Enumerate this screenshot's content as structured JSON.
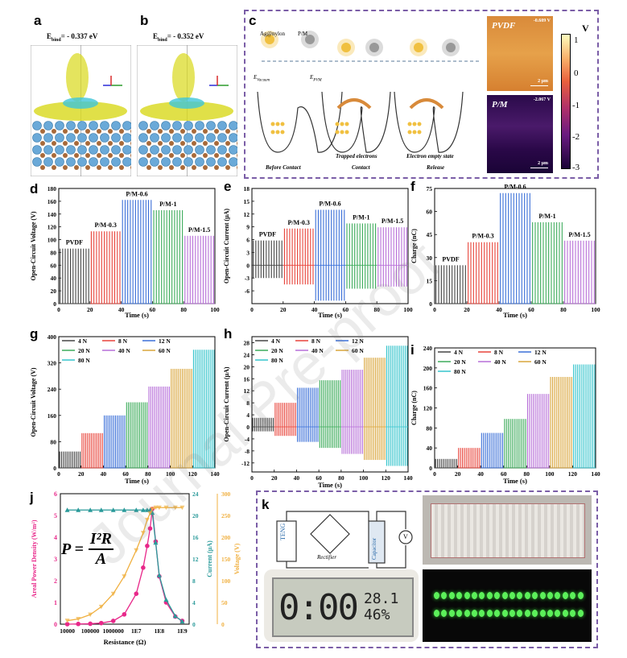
{
  "panels": {
    "a": {
      "label": "a",
      "ebind": "E",
      "ebind_sub": "bind",
      "ebind_value": "= - 0.337 eV"
    },
    "b": {
      "label": "b",
      "ebind": "E",
      "ebind_sub": "bind",
      "ebind_value": "= - 0.352 eV"
    },
    "c": {
      "label": "c",
      "materials": [
        "Ag@nylon",
        "P/M"
      ],
      "energy_labels": [
        "E",
        "E"
      ],
      "energy_subs": [
        "Vacuum",
        "PVM"
      ],
      "bottom_labels": [
        "Before Contact",
        "Contact",
        "Release"
      ],
      "legend": [
        "Trapped electrons",
        "Electron empty state"
      ],
      "afm": [
        {
          "name": "PVDF",
          "potential": "-0.609 V",
          "scale": "2 μm"
        },
        {
          "name": "P/M",
          "potential": "-2.067 V",
          "scale": "2 μm"
        }
      ],
      "colorbar_unit": "V",
      "colorbar_ticks": [
        "1",
        "0",
        "-1",
        "-2",
        "-3"
      ]
    },
    "d": {
      "label": "d"
    },
    "e": {
      "label": "e"
    },
    "f": {
      "label": "f"
    },
    "g": {
      "label": "g"
    },
    "h": {
      "label": "h"
    },
    "i": {
      "label": "i"
    },
    "j": {
      "label": "j",
      "formula_lhs": "P =",
      "formula_num": "I²R",
      "formula_den": "A"
    },
    "k": {
      "label": "k",
      "circuit": [
        "TENG",
        "Rectifier",
        "Capacitor",
        "V"
      ],
      "clock": {
        "time": "0:00",
        "temp": "28.1",
        "humidity": "46%"
      }
    }
  },
  "watermark": "Journal Pre-proof",
  "chart_data": [
    {
      "id": "d",
      "type": "bar",
      "ylabel": "Open-Circuit Voltage (V)",
      "xlabel": "Time (s)",
      "xlim": [
        0,
        100
      ],
      "ylim": [
        0,
        180
      ],
      "xticks": [
        0,
        20,
        40,
        60,
        80,
        100
      ],
      "yticks": [
        0,
        20,
        40,
        60,
        80,
        100,
        120,
        140,
        160,
        180
      ],
      "series": [
        {
          "name": "PVDF",
          "x_range": [
            0,
            20
          ],
          "peak": 86,
          "trough": 0,
          "color": "#444444"
        },
        {
          "name": "P/M-0.3",
          "x_range": [
            20,
            40
          ],
          "peak": 113,
          "trough": 0,
          "color": "#e8433a"
        },
        {
          "name": "P/M-0.6",
          "x_range": [
            40,
            60
          ],
          "peak": 162,
          "trough": 0,
          "color": "#3a6fd8"
        },
        {
          "name": "P/M-1",
          "x_range": [
            60,
            80
          ],
          "peak": 146,
          "trough": 0,
          "color": "#3cab5a"
        },
        {
          "name": "P/M-1.5",
          "x_range": [
            80,
            100
          ],
          "peak": 106,
          "trough": 0,
          "color": "#b76fd8"
        }
      ]
    },
    {
      "id": "e",
      "type": "bar",
      "ylabel": "Open-Circuit Current (μA)",
      "xlabel": "Time (s)",
      "xlim": [
        0,
        100
      ],
      "ylim": [
        -9,
        18
      ],
      "xticks": [
        0,
        20,
        40,
        60,
        80,
        100
      ],
      "yticks": [
        -6,
        -3,
        0,
        3,
        6,
        9,
        12,
        15,
        18
      ],
      "series": [
        {
          "name": "PVDF",
          "x_range": [
            0,
            20
          ],
          "peak": 5.8,
          "trough": -3,
          "color": "#444444"
        },
        {
          "name": "P/M-0.3",
          "x_range": [
            20,
            40
          ],
          "peak": 8.6,
          "trough": -4.5,
          "color": "#e8433a"
        },
        {
          "name": "P/M-0.6",
          "x_range": [
            40,
            60
          ],
          "peak": 13,
          "trough": -8.3,
          "color": "#3a6fd8"
        },
        {
          "name": "P/M-1",
          "x_range": [
            60,
            80
          ],
          "peak": 9.8,
          "trough": -5.5,
          "color": "#3cab5a"
        },
        {
          "name": "P/M-1.5",
          "x_range": [
            80,
            100
          ],
          "peak": 8.9,
          "trough": -5,
          "color": "#b76fd8"
        }
      ]
    },
    {
      "id": "f",
      "type": "bar",
      "ylabel": "Charge (nC)",
      "xlabel": "Time (s)",
      "xlim": [
        0,
        100
      ],
      "ylim": [
        0,
        75
      ],
      "xticks": [
        0,
        20,
        40,
        60,
        80,
        100
      ],
      "yticks": [
        0,
        15,
        30,
        45,
        60,
        75
      ],
      "series": [
        {
          "name": "PVDF",
          "x_range": [
            0,
            20
          ],
          "peak": 25,
          "trough": 0,
          "color": "#444444"
        },
        {
          "name": "P/M-0.3",
          "x_range": [
            20,
            40
          ],
          "peak": 40,
          "trough": 0,
          "color": "#e8433a"
        },
        {
          "name": "P/M-0.6",
          "x_range": [
            40,
            60
          ],
          "peak": 72,
          "trough": 0,
          "color": "#3a6fd8"
        },
        {
          "name": "P/M-1",
          "x_range": [
            60,
            80
          ],
          "peak": 53,
          "trough": 0,
          "color": "#3cab5a"
        },
        {
          "name": "P/M-1.5",
          "x_range": [
            80,
            100
          ],
          "peak": 41,
          "trough": 0,
          "color": "#b76fd8"
        }
      ]
    },
    {
      "id": "g",
      "type": "bar",
      "ylabel": "Open-Circuit Voltage (V)",
      "xlabel": "Time (s)",
      "xlim": [
        0,
        140
      ],
      "ylim": [
        0,
        400
      ],
      "xticks": [
        0,
        20,
        40,
        60,
        80,
        100,
        120,
        140
      ],
      "yticks": [
        0,
        80,
        160,
        240,
        320,
        400
      ],
      "series": [
        {
          "name": "4 N",
          "x_range": [
            0,
            20
          ],
          "peak": 50,
          "trough": 0,
          "color": "#444444"
        },
        {
          "name": "8 N",
          "x_range": [
            20,
            40
          ],
          "peak": 106,
          "trough": 0,
          "color": "#e8433a"
        },
        {
          "name": "12 N",
          "x_range": [
            40,
            60
          ],
          "peak": 160,
          "trough": 0,
          "color": "#3a6fd8"
        },
        {
          "name": "20 N",
          "x_range": [
            60,
            80
          ],
          "peak": 200,
          "trough": 0,
          "color": "#3cab5a"
        },
        {
          "name": "40 N",
          "x_range": [
            80,
            100
          ],
          "peak": 248,
          "trough": 0,
          "color": "#b76fd8"
        },
        {
          "name": "60 N",
          "x_range": [
            100,
            120
          ],
          "peak": 302,
          "trough": 0,
          "color": "#d9a53a"
        },
        {
          "name": "80 N",
          "x_range": [
            120,
            140
          ],
          "peak": 360,
          "trough": 0,
          "color": "#35c4cc"
        }
      ]
    },
    {
      "id": "h",
      "type": "bar",
      "ylabel": "Open-Circuit Current (μA)",
      "xlabel": "Time (s)",
      "xlim": [
        0,
        140
      ],
      "ylim": [
        -15,
        30
      ],
      "xticks": [
        0,
        20,
        40,
        60,
        80,
        100,
        120,
        140
      ],
      "yticks": [
        -12,
        -8,
        -4,
        0,
        4,
        8,
        12,
        16,
        20,
        24,
        28
      ],
      "series": [
        {
          "name": "4 N",
          "x_range": [
            0,
            20
          ],
          "peak": 3,
          "trough": -1.5,
          "color": "#444444"
        },
        {
          "name": "8 N",
          "x_range": [
            20,
            40
          ],
          "peak": 8,
          "trough": -3,
          "color": "#e8433a"
        },
        {
          "name": "12 N",
          "x_range": [
            40,
            60
          ],
          "peak": 13,
          "trough": -5,
          "color": "#3a6fd8"
        },
        {
          "name": "20 N",
          "x_range": [
            60,
            80
          ],
          "peak": 15.5,
          "trough": -7,
          "color": "#3cab5a"
        },
        {
          "name": "40 N",
          "x_range": [
            80,
            100
          ],
          "peak": 19,
          "trough": -9,
          "color": "#b76fd8"
        },
        {
          "name": "60 N",
          "x_range": [
            100,
            120
          ],
          "peak": 23,
          "trough": -11,
          "color": "#d9a53a"
        },
        {
          "name": "80 N",
          "x_range": [
            120,
            140
          ],
          "peak": 27,
          "trough": -13,
          "color": "#35c4cc"
        }
      ]
    },
    {
      "id": "i",
      "type": "bar",
      "ylabel": "Charge (nC)",
      "xlabel": "Time (s)",
      "xlim": [
        0,
        140
      ],
      "ylim": [
        0,
        240
      ],
      "xticks": [
        0,
        20,
        40,
        60,
        80,
        100,
        120,
        140
      ],
      "yticks": [
        0,
        40,
        80,
        120,
        160,
        200,
        240
      ],
      "series": [
        {
          "name": "4 N",
          "x_range": [
            0,
            20
          ],
          "peak": 18,
          "trough": 0,
          "color": "#444444"
        },
        {
          "name": "8 N",
          "x_range": [
            20,
            40
          ],
          "peak": 40,
          "trough": 0,
          "color": "#e8433a"
        },
        {
          "name": "12 N",
          "x_range": [
            40,
            60
          ],
          "peak": 70,
          "trough": 0,
          "color": "#3a6fd8"
        },
        {
          "name": "20 N",
          "x_range": [
            60,
            80
          ],
          "peak": 98,
          "trough": 0,
          "color": "#3cab5a"
        },
        {
          "name": "40 N",
          "x_range": [
            80,
            100
          ],
          "peak": 148,
          "trough": 0,
          "color": "#b76fd8"
        },
        {
          "name": "60 N",
          "x_range": [
            100,
            120
          ],
          "peak": 182,
          "trough": 0,
          "color": "#d9a53a"
        },
        {
          "name": "80 N",
          "x_range": [
            120,
            140
          ],
          "peak": 207,
          "trough": 0,
          "color": "#35c4cc"
        }
      ]
    },
    {
      "id": "j",
      "type": "line",
      "xlabel": "Resistance (Ω)",
      "xscale": "log",
      "xticks": [
        "10000",
        "100000",
        "1000000",
        "1E7",
        "1E8",
        "1E9"
      ],
      "x": [
        10000.0,
        30000.0,
        100000.0,
        300000.0,
        1000000.0,
        3000000.0,
        10000000.0,
        20000000.0,
        30000000.0,
        40000000.0,
        50000000.0,
        70000000.0,
        100000000.0,
        200000000.0,
        500000000.0,
        1000000000.0
      ],
      "axes": [
        {
          "label": "Areal Power Density (W/m²)",
          "range": [
            0,
            6
          ],
          "ticks": [
            0,
            1,
            2,
            3,
            4,
            5,
            6
          ],
          "color": "#e8288a"
        },
        {
          "label": "Current (μA)",
          "range": [
            0,
            24
          ],
          "ticks": [
            0,
            4,
            8,
            12,
            16,
            20,
            24
          ],
          "color": "#2a9a9a"
        },
        {
          "label": "Voltage (V)",
          "range": [
            0,
            300
          ],
          "ticks": [
            0,
            50,
            100,
            150,
            200,
            250,
            300
          ],
          "color": "#f0b040"
        }
      ],
      "series": [
        {
          "name": "Power density",
          "axis": 0,
          "color": "#e8288a",
          "values": [
            0.0,
            0.01,
            0.02,
            0.05,
            0.15,
            0.45,
            1.4,
            2.6,
            3.6,
            4.4,
            5.3,
            3.8,
            2.2,
            1.0,
            0.35,
            0.15
          ]
        },
        {
          "name": "Current",
          "axis": 1,
          "color": "#2a9a9a",
          "values": [
            21,
            21,
            21,
            21,
            21,
            21,
            21,
            21,
            21,
            21,
            20.5,
            15,
            9,
            4.5,
            1.5,
            0.5
          ]
        },
        {
          "name": "Voltage",
          "axis": 2,
          "color": "#f0b040",
          "values": [
            8,
            12,
            22,
            40,
            70,
            110,
            170,
            210,
            240,
            255,
            265,
            268,
            268,
            268,
            268,
            268
          ]
        }
      ]
    }
  ]
}
